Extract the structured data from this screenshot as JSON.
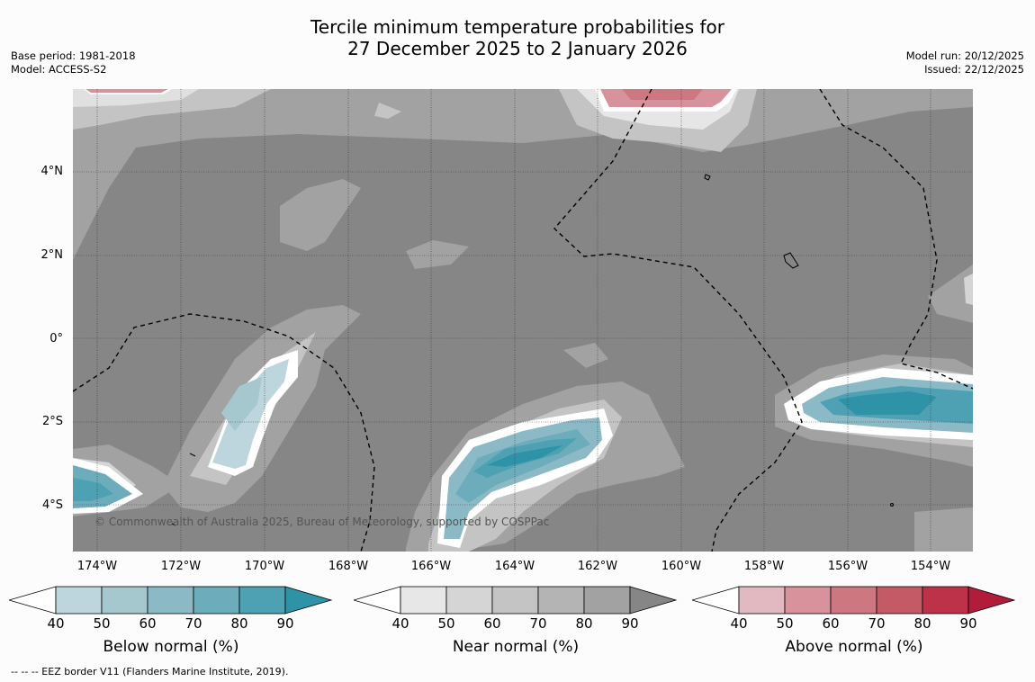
{
  "title": {
    "line1": "Tercile minimum temperature probabilities for",
    "line2": "27 December 2025 to 2 January 2026"
  },
  "meta_left": {
    "base_period": "Base period: 1981-2018",
    "model": "Model: ACCESS-S2"
  },
  "meta_right": {
    "model_run": "Model run: 20/12/2025",
    "issued": "Issued: 22/12/2025"
  },
  "map": {
    "lat_labels": [
      "4°N",
      "2°N",
      "0°",
      "2°S",
      "4°S"
    ],
    "lon_labels": [
      "174°W",
      "172°W",
      "170°W",
      "168°W",
      "166°W",
      "164°W",
      "162°W",
      "160°W",
      "158°W",
      "156°W",
      "154°W"
    ],
    "copyright": "© Commonwealth of Australia 2025, Bureau of Meteorology, supported by COSPPac",
    "background_color": "#868686"
  },
  "colorbars": [
    {
      "label": "Below normal (%)",
      "ticks": [
        "40",
        "50",
        "60",
        "70",
        "80",
        "90"
      ],
      "colors": [
        "#ffffff",
        "#bdd5dc",
        "#a5c8cf",
        "#8cb9c6",
        "#6cacbb",
        "#4ea1b3",
        "#2f93a8"
      ]
    },
    {
      "label": "Near normal (%)",
      "ticks": [
        "40",
        "50",
        "60",
        "70",
        "80",
        "90"
      ],
      "colors": [
        "#ffffff",
        "#e7e7e7",
        "#d5d5d5",
        "#c4c4c4",
        "#b4b4b4",
        "#a2a2a2",
        "#868686"
      ]
    },
    {
      "label": "Above normal (%)",
      "ticks": [
        "40",
        "50",
        "60",
        "70",
        "80",
        "90"
      ],
      "colors": [
        "#ffffff",
        "#e2b9c0",
        "#d8929c",
        "#cd7881",
        "#c55a67",
        "#bd3248",
        "#b01c3a"
      ]
    }
  ],
  "footer": "--  --  -- EEZ border V11 (Flanders Marine Institute, 2019)."
}
